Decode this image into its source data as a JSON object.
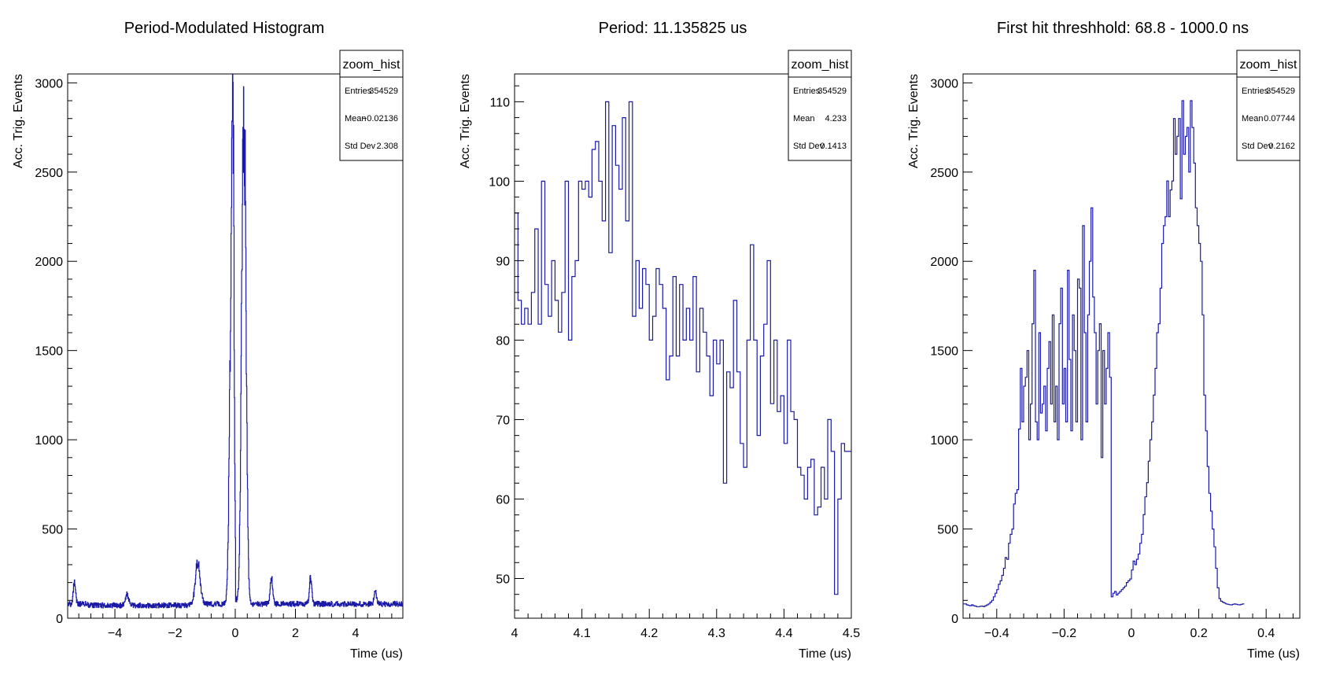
{
  "colors": {
    "line": "#1a1aa6",
    "axis": "#000000",
    "background": "#ffffff"
  },
  "chart_data": [
    {
      "type": "histogram",
      "title": "Period-Modulated Histogram",
      "xlabel": "Time (us)",
      "ylabel": "Acc. Trig. Events",
      "xlim": [
        -5.57,
        5.57
      ],
      "ylim": [
        0,
        3050
      ],
      "xticks": [
        -4,
        -2,
        0,
        2,
        4
      ],
      "xtick_labels": [
        "−4",
        "−2",
        "0",
        "2",
        "4"
      ],
      "yticks": [
        0,
        500,
        1000,
        1500,
        2000,
        2500,
        3000
      ],
      "ytick_labels": [
        "0",
        "500",
        "1000",
        "1500",
        "2000",
        "2500",
        "3000"
      ],
      "stats": {
        "name": "zoom_hist",
        "rows": [
          {
            "label": "Entries",
            "value": "354529"
          },
          {
            "label": "Mean",
            "value": "−0.02136"
          },
          {
            "label": "Std Dev",
            "value": "2.308"
          }
        ]
      },
      "series_description": "baseline ~80 events with peaks",
      "baseline": 80,
      "peaks": [
        {
          "x": -5.35,
          "height": 120,
          "width": 0.04
        },
        {
          "x": -3.6,
          "height": 60,
          "width": 0.05
        },
        {
          "x": -1.25,
          "height": 230,
          "width": 0.08
        },
        {
          "x": -0.15,
          "height": 1300,
          "width": 0.06
        },
        {
          "x": -0.08,
          "height": 2250,
          "width": 0.04
        },
        {
          "x": 0.28,
          "height": 2830,
          "width": 0.07
        },
        {
          "x": 1.2,
          "height": 150,
          "width": 0.04
        },
        {
          "x": 2.5,
          "height": 140,
          "width": 0.04
        },
        {
          "x": 4.65,
          "height": 70,
          "width": 0.04
        }
      ]
    },
    {
      "type": "histogram",
      "title": "Period: 11.135825 us",
      "xlabel": "Time (us)",
      "ylabel": "Acc. Trig. Events",
      "xlim": [
        4.0,
        4.5
      ],
      "ylim": [
        45,
        113.5
      ],
      "xticks": [
        4.0,
        4.1,
        4.2,
        4.3,
        4.4,
        4.5
      ],
      "xtick_labels": [
        "4",
        "4.1",
        "4.2",
        "4.3",
        "4.4",
        "4.5"
      ],
      "yticks": [
        50,
        60,
        70,
        80,
        90,
        100,
        110
      ],
      "ytick_labels": [
        "50",
        "60",
        "70",
        "80",
        "90",
        "100",
        "110"
      ],
      "stats": {
        "name": "zoom_hist",
        "rows": [
          {
            "label": "Entries",
            "value": "354529"
          },
          {
            "label": "Mean",
            "value": "4.233"
          },
          {
            "label": "Std Dev",
            "value": "0.1413"
          }
        ]
      },
      "bin_width": 0.005,
      "values": [
        96,
        85,
        82,
        84,
        82,
        86,
        94,
        82,
        100,
        87,
        83,
        90,
        85,
        81,
        86,
        100,
        80,
        88,
        90,
        100,
        99,
        100,
        98,
        104,
        105,
        100,
        95,
        110,
        91,
        107,
        102,
        99,
        108,
        95,
        110,
        83,
        90,
        84,
        89,
        87,
        80,
        83,
        89,
        87,
        84,
        75,
        78,
        88,
        78,
        87,
        80,
        84,
        80,
        88,
        76,
        84,
        81,
        78,
        73,
        80,
        77,
        80,
        62,
        76,
        74,
        85,
        76,
        67,
        64,
        80,
        92,
        80,
        68,
        78,
        82,
        90,
        72,
        80,
        71,
        73,
        67,
        80,
        71,
        70,
        64,
        63,
        60,
        64,
        65,
        58,
        59,
        64,
        60,
        70,
        66,
        48,
        60,
        67,
        66,
        66
      ]
    },
    {
      "type": "histogram",
      "title": "First hit threshhold: 68.8 - 1000.0 ns",
      "xlabel": "Time (us)",
      "ylabel": "Acc. Trig. Events",
      "xlim": [
        -0.5,
        0.5
      ],
      "ylim": [
        0,
        3050
      ],
      "xticks": [
        -0.4,
        -0.2,
        0,
        0.2,
        0.4
      ],
      "xtick_labels": [
        "−0.4",
        "−0.2",
        "0",
        "0.2",
        "0.4"
      ],
      "yticks": [
        0,
        500,
        1000,
        1500,
        2000,
        2500,
        3000
      ],
      "ytick_labels": [
        "0",
        "500",
        "1000",
        "1500",
        "2000",
        "2500",
        "3000"
      ],
      "stats": {
        "name": "zoom_hist",
        "rows": [
          {
            "label": "Entries",
            "value": "354529"
          },
          {
            "label": "Mean",
            "value": "0.07744"
          },
          {
            "label": "Std Dev",
            "value": "0.2162"
          }
        ]
      },
      "bin_width": 0.005,
      "values": [
        80,
        80,
        75,
        72,
        70,
        75,
        70,
        68,
        65,
        65,
        67,
        68,
        65,
        70,
        75,
        80,
        90,
        100,
        120,
        140,
        160,
        190,
        210,
        240,
        280,
        340,
        330,
        420,
        470,
        500,
        640,
        700,
        720,
        1060,
        1400,
        1100,
        1300,
        1350,
        1500,
        1000,
        1200,
        1650,
        1950,
        1100,
        1000,
        1600,
        1150,
        1200,
        1300,
        1050,
        1400,
        1550,
        1200,
        1700,
        1100,
        1300,
        1000,
        1650,
        1850,
        1200,
        1400,
        1100,
        1950,
        1450,
        1050,
        1700,
        1500,
        1100,
        1900,
        1850,
        1000,
        2200,
        1600,
        1100,
        1700,
        2000,
        2300,
        1800,
        1600,
        1200,
        1500,
        1650,
        900,
        1500,
        1200,
        1400,
        1600,
        1350,
        120,
        140,
        150,
        130,
        140,
        150,
        160,
        170,
        180,
        200,
        210,
        220,
        270,
        320,
        300,
        330,
        360,
        420,
        470,
        580,
        680,
        760,
        880,
        1000,
        1100,
        1250,
        1400,
        1600,
        1650,
        1850,
        2100,
        2200,
        2250,
        2450,
        2250,
        2400,
        2450,
        2800,
        2600,
        2700,
        2800,
        2350,
        2900,
        2600,
        2700,
        2750,
        2500,
        2900,
        2750,
        2550,
        2300,
        2200,
        2100,
        2000,
        1700,
        1250,
        1050,
        850,
        700,
        600,
        500,
        400,
        280,
        170,
        110,
        95,
        90,
        85,
        80,
        78,
        76,
        75,
        78,
        80,
        78,
        76,
        75,
        78,
        80
      ]
    }
  ]
}
